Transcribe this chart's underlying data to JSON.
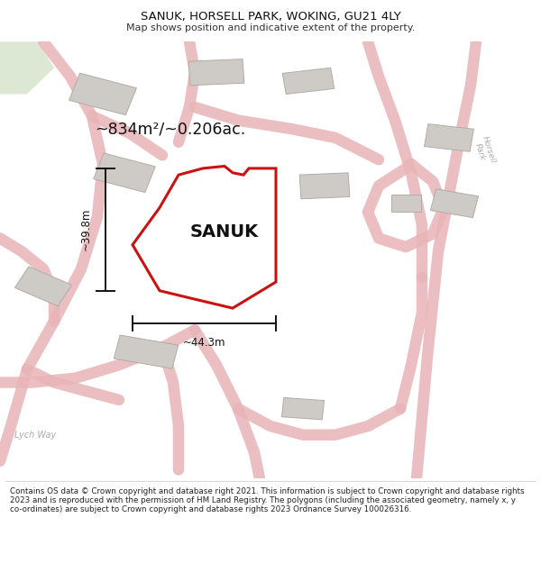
{
  "title": "SANUK, HORSELL PARK, WOKING, GU21 4LY",
  "subtitle": "Map shows position and indicative extent of the property.",
  "footer": "Contains OS data © Crown copyright and database right 2021. This information is subject to Crown copyright and database rights 2023 and is reproduced with the permission of HM Land Registry. The polygons (including the associated geometry, namely x, y co-ordinates) are subject to Crown copyright and database rights 2023 Ordnance Survey 100026316.",
  "area_label": "~834m²/~0.206ac.",
  "property_name": "SANUK",
  "dim_width_label": "~44.3m",
  "dim_height_label": "~39.8m",
  "map_bg": "#f2eeeb",
  "road_color": "#e8b4b8",
  "road_fill": "#f5eeeb",
  "building_color": "#cecac6",
  "building_edge": "#b0aca8",
  "green_area_color": "#dce8d4",
  "property_outline_color": "#cc1111",
  "dim_line_color": "#111111",
  "horsell_park_label": "Horsell\nPark",
  "lych_way_label": "Lych Way",
  "title_color": "#111111",
  "subtitle_color": "#333333",
  "footer_color": "#222222"
}
